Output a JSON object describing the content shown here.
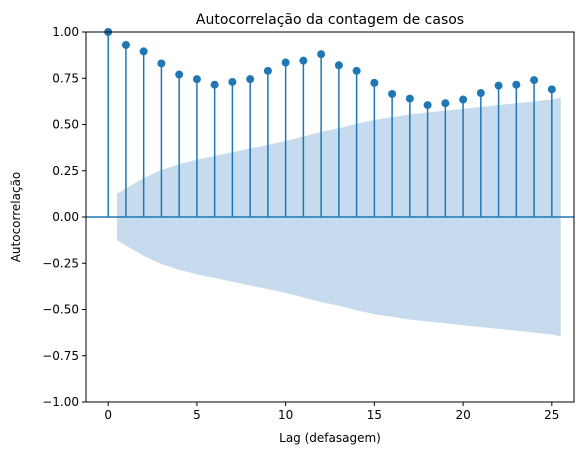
{
  "chart_data": {
    "type": "scatter",
    "subtype": "acf-stem",
    "title": "Autocorrelação da contagem de casos",
    "xlabel": "Lag (defasagem)",
    "ylabel": "Autocorrelação",
    "xlim": [
      -1.25,
      26.25
    ],
    "ylim": [
      -1.0,
      1.0
    ],
    "x_ticks": [
      0,
      5,
      10,
      15,
      20,
      25
    ],
    "x_tick_labels": [
      "0",
      "5",
      "10",
      "15",
      "20",
      "25"
    ],
    "y_ticks": [
      -1.0,
      -0.75,
      -0.5,
      -0.25,
      0.0,
      0.25,
      0.5,
      0.75,
      1.0
    ],
    "y_tick_labels": [
      "−1.00",
      "−0.75",
      "−0.50",
      "−0.25",
      "0.00",
      "0.25",
      "0.50",
      "0.75",
      "1.00"
    ],
    "grid": false,
    "series": [
      {
        "lags": [
          0,
          1,
          2,
          3,
          4,
          5,
          6,
          7,
          8,
          9,
          10,
          11,
          12,
          13,
          14,
          15,
          16,
          17,
          18,
          19,
          20,
          21,
          22,
          23,
          24,
          25
        ],
        "values": [
          1.0,
          0.93,
          0.895,
          0.83,
          0.77,
          0.745,
          0.715,
          0.73,
          0.745,
          0.79,
          0.835,
          0.845,
          0.88,
          0.82,
          0.79,
          0.725,
          0.665,
          0.64,
          0.605,
          0.615,
          0.635,
          0.67,
          0.71,
          0.715,
          0.74,
          0.69
        ]
      }
    ],
    "confidence_band": {
      "lags": [
        0.5,
        1,
        2,
        3,
        4,
        5,
        6,
        7,
        8,
        9,
        10,
        11,
        12,
        13,
        14,
        15,
        16,
        17,
        18,
        19,
        20,
        21,
        22,
        23,
        24,
        25,
        25.5
      ],
      "upper": [
        0.125,
        0.155,
        0.21,
        0.255,
        0.285,
        0.31,
        0.33,
        0.35,
        0.37,
        0.39,
        0.41,
        0.435,
        0.46,
        0.48,
        0.505,
        0.525,
        0.54,
        0.555,
        0.565,
        0.575,
        0.585,
        0.595,
        0.605,
        0.615,
        0.625,
        0.635,
        0.645
      ]
    },
    "colors": {
      "stem": "#1f77b4",
      "band": "#c6dbed",
      "zero_line": "#1f77b4"
    }
  }
}
